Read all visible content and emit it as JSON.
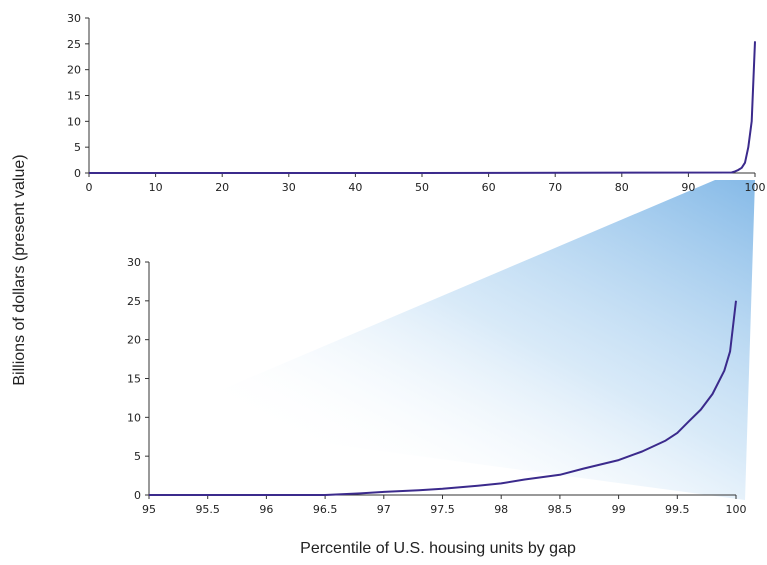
{
  "chart_data": {
    "ylabel": "Billions of dollars (present value)",
    "xlabel": "Percentile of U.S. housing units by gap",
    "line_color": "#3b2a8c",
    "zoom_fill_color": "#7fb6e6",
    "charts": [
      {
        "type": "line",
        "position": "top",
        "xlim": [
          0,
          100
        ],
        "ylim": [
          0,
          30
        ],
        "x_ticks": [
          "0",
          "10",
          "20",
          "30",
          "40",
          "50",
          "60",
          "70",
          "80",
          "90",
          "100"
        ],
        "y_ticks": [
          "0",
          "5",
          "10",
          "15",
          "20",
          "25",
          "30"
        ],
        "series": [
          {
            "x": [
              0,
              50,
              96.5,
              97,
              97.5,
              98,
              98.5,
              99,
              99.5,
              100
            ],
            "y": [
              0,
              0,
              0.1,
              0.3,
              0.6,
              1.0,
              2.0,
              5.0,
              10.0,
              25.5
            ]
          }
        ]
      },
      {
        "type": "line",
        "position": "bottom",
        "xlim": [
          95,
          100
        ],
        "ylim": [
          0,
          30
        ],
        "x_ticks": [
          "95",
          "95.5",
          "96",
          "96.5",
          "97",
          "97.5",
          "98",
          "98.5",
          "99",
          "99.5",
          "100"
        ],
        "y_ticks": [
          "0",
          "5",
          "10",
          "15",
          "20",
          "25",
          "30"
        ],
        "series": [
          {
            "x": [
              95,
              96,
              96.5,
              96.8,
              97,
              97.3,
              97.5,
              97.8,
              98,
              98.2,
              98.5,
              98.7,
              99,
              99.2,
              99.4,
              99.5,
              99.6,
              99.7,
              99.8,
              99.9,
              99.95,
              100
            ],
            "y": [
              0,
              0,
              0,
              0.2,
              0.4,
              0.6,
              0.8,
              1.2,
              1.5,
              2.0,
              2.6,
              3.4,
              4.5,
              5.6,
              7.0,
              8.0,
              9.5,
              11.0,
              13.0,
              16.0,
              18.5,
              25.0
            ]
          }
        ]
      }
    ]
  }
}
